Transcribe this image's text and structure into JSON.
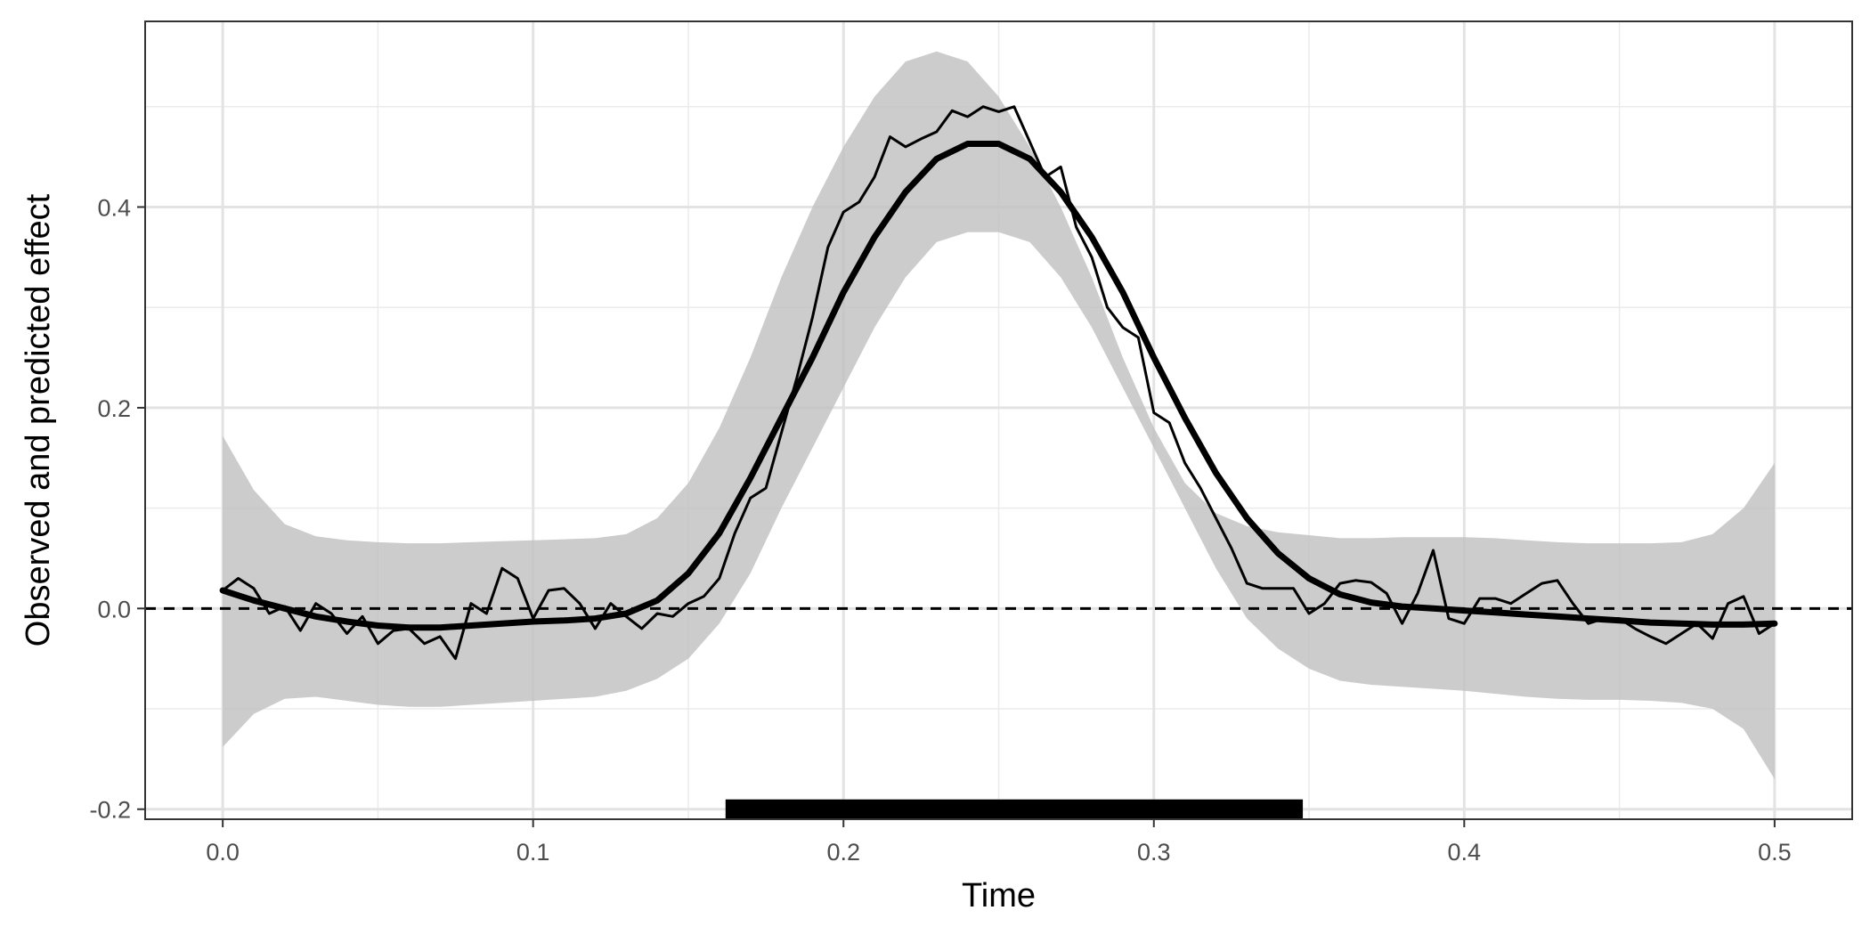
{
  "chart_data": {
    "type": "line",
    "title": "",
    "xlabel": "Time",
    "ylabel": "Observed and predicted effect",
    "xlim": [
      -0.025,
      0.525
    ],
    "ylim": [
      -0.21,
      0.585
    ],
    "x_ticks": [
      0.0,
      0.1,
      0.2,
      0.3,
      0.4,
      0.5
    ],
    "x_tick_labels": [
      "0.0",
      "0.1",
      "0.2",
      "0.3",
      "0.4",
      "0.5"
    ],
    "y_ticks": [
      -0.2,
      0.0,
      0.2,
      0.4
    ],
    "y_tick_labels": [
      "-0.2",
      "0.0",
      "0.2",
      "0.4"
    ],
    "grid": true,
    "theme": "bw",
    "reference_line": {
      "y": 0.0,
      "style": "dashed",
      "color": "#000000"
    },
    "significance_bar": {
      "x_start": 0.162,
      "x_end": 0.348,
      "y": -0.2,
      "color": "#000000"
    },
    "band": {
      "color": "#bfbfbf",
      "x": [
        0.0,
        0.01,
        0.02,
        0.03,
        0.04,
        0.05,
        0.06,
        0.07,
        0.08,
        0.09,
        0.1,
        0.11,
        0.12,
        0.13,
        0.14,
        0.15,
        0.16,
        0.17,
        0.18,
        0.19,
        0.2,
        0.21,
        0.22,
        0.23,
        0.24,
        0.25,
        0.26,
        0.27,
        0.28,
        0.29,
        0.3,
        0.31,
        0.32,
        0.33,
        0.34,
        0.35,
        0.36,
        0.37,
        0.38,
        0.39,
        0.4,
        0.41,
        0.42,
        0.43,
        0.44,
        0.45,
        0.46,
        0.47,
        0.48,
        0.49,
        0.5
      ],
      "upper": [
        0.172,
        0.118,
        0.084,
        0.072,
        0.068,
        0.066,
        0.065,
        0.065,
        0.066,
        0.067,
        0.068,
        0.069,
        0.07,
        0.074,
        0.09,
        0.125,
        0.18,
        0.25,
        0.33,
        0.4,
        0.46,
        0.51,
        0.545,
        0.555,
        0.545,
        0.51,
        0.46,
        0.4,
        0.33,
        0.25,
        0.18,
        0.125,
        0.095,
        0.082,
        0.076,
        0.073,
        0.07,
        0.07,
        0.071,
        0.071,
        0.071,
        0.07,
        0.068,
        0.066,
        0.065,
        0.065,
        0.065,
        0.066,
        0.074,
        0.1,
        0.145
      ],
      "lower": [
        -0.138,
        -0.105,
        -0.09,
        -0.088,
        -0.092,
        -0.096,
        -0.098,
        -0.098,
        -0.096,
        -0.094,
        -0.092,
        -0.09,
        -0.088,
        -0.082,
        -0.07,
        -0.05,
        -0.015,
        0.035,
        0.1,
        0.16,
        0.22,
        0.28,
        0.33,
        0.365,
        0.375,
        0.375,
        0.365,
        0.33,
        0.28,
        0.22,
        0.16,
        0.1,
        0.04,
        -0.01,
        -0.04,
        -0.06,
        -0.072,
        -0.076,
        -0.078,
        -0.08,
        -0.082,
        -0.085,
        -0.088,
        -0.09,
        -0.091,
        -0.091,
        -0.092,
        -0.094,
        -0.1,
        -0.12,
        -0.17
      ]
    },
    "series": [
      {
        "name": "",
        "role": "predicted",
        "color": "#000000",
        "x": [
          0.0,
          0.01,
          0.02,
          0.03,
          0.04,
          0.05,
          0.06,
          0.07,
          0.08,
          0.09,
          0.1,
          0.11,
          0.12,
          0.13,
          0.14,
          0.15,
          0.16,
          0.17,
          0.18,
          0.19,
          0.2,
          0.21,
          0.22,
          0.23,
          0.24,
          0.25,
          0.26,
          0.27,
          0.28,
          0.29,
          0.3,
          0.31,
          0.32,
          0.33,
          0.34,
          0.35,
          0.36,
          0.37,
          0.38,
          0.39,
          0.4,
          0.41,
          0.42,
          0.43,
          0.44,
          0.45,
          0.46,
          0.47,
          0.48,
          0.49,
          0.5
        ],
        "y": [
          0.018,
          0.008,
          0.0,
          -0.008,
          -0.013,
          -0.017,
          -0.019,
          -0.019,
          -0.017,
          -0.015,
          -0.013,
          -0.012,
          -0.01,
          -0.005,
          0.008,
          0.035,
          0.075,
          0.13,
          0.19,
          0.25,
          0.315,
          0.37,
          0.415,
          0.448,
          0.463,
          0.463,
          0.448,
          0.415,
          0.37,
          0.315,
          0.25,
          0.19,
          0.135,
          0.09,
          0.055,
          0.03,
          0.014,
          0.006,
          0.002,
          0.0,
          -0.002,
          -0.004,
          -0.006,
          -0.008,
          -0.01,
          -0.012,
          -0.014,
          -0.015,
          -0.016,
          -0.016,
          -0.015
        ]
      },
      {
        "name": "",
        "role": "observed",
        "color": "#000000",
        "x": [
          0.0,
          0.005,
          0.01,
          0.015,
          0.02,
          0.025,
          0.03,
          0.035,
          0.04,
          0.045,
          0.05,
          0.055,
          0.06,
          0.065,
          0.07,
          0.075,
          0.08,
          0.085,
          0.09,
          0.095,
          0.1,
          0.105,
          0.11,
          0.115,
          0.12,
          0.125,
          0.13,
          0.135,
          0.14,
          0.145,
          0.15,
          0.155,
          0.16,
          0.165,
          0.17,
          0.175,
          0.18,
          0.185,
          0.19,
          0.195,
          0.2,
          0.205,
          0.21,
          0.215,
          0.22,
          0.225,
          0.23,
          0.235,
          0.24,
          0.245,
          0.25,
          0.255,
          0.26,
          0.265,
          0.27,
          0.275,
          0.28,
          0.285,
          0.29,
          0.295,
          0.3,
          0.305,
          0.31,
          0.315,
          0.32,
          0.325,
          0.33,
          0.335,
          0.34,
          0.345,
          0.35,
          0.355,
          0.36,
          0.365,
          0.37,
          0.375,
          0.38,
          0.385,
          0.39,
          0.395,
          0.4,
          0.405,
          0.41,
          0.415,
          0.42,
          0.425,
          0.43,
          0.435,
          0.44,
          0.445,
          0.45,
          0.455,
          0.46,
          0.465,
          0.47,
          0.475,
          0.48,
          0.485,
          0.49,
          0.495,
          0.5
        ],
        "y": [
          0.018,
          0.03,
          0.02,
          -0.005,
          0.002,
          -0.022,
          0.005,
          -0.005,
          -0.025,
          -0.008,
          -0.035,
          -0.022,
          -0.02,
          -0.035,
          -0.028,
          -0.05,
          0.005,
          -0.005,
          0.04,
          0.03,
          -0.01,
          0.018,
          0.02,
          0.005,
          -0.02,
          0.005,
          -0.008,
          -0.02,
          -0.005,
          -0.008,
          0.005,
          0.012,
          0.03,
          0.075,
          0.11,
          0.12,
          0.175,
          0.23,
          0.29,
          0.36,
          0.395,
          0.405,
          0.43,
          0.47,
          0.46,
          0.468,
          0.475,
          0.496,
          0.49,
          0.5,
          0.495,
          0.5,
          0.465,
          0.43,
          0.44,
          0.38,
          0.35,
          0.3,
          0.28,
          0.27,
          0.195,
          0.185,
          0.145,
          0.12,
          0.09,
          0.06,
          0.025,
          0.02,
          0.02,
          0.02,
          -0.005,
          0.005,
          0.025,
          0.028,
          0.026,
          0.015,
          -0.015,
          0.015,
          0.058,
          -0.01,
          -0.015,
          0.01,
          0.01,
          0.005,
          0.015,
          0.025,
          0.028,
          0.005,
          -0.015,
          -0.01,
          -0.01,
          -0.02,
          -0.028,
          -0.035,
          -0.025,
          -0.015,
          -0.03,
          0.005,
          0.012,
          -0.025,
          -0.015
        ]
      }
    ]
  }
}
